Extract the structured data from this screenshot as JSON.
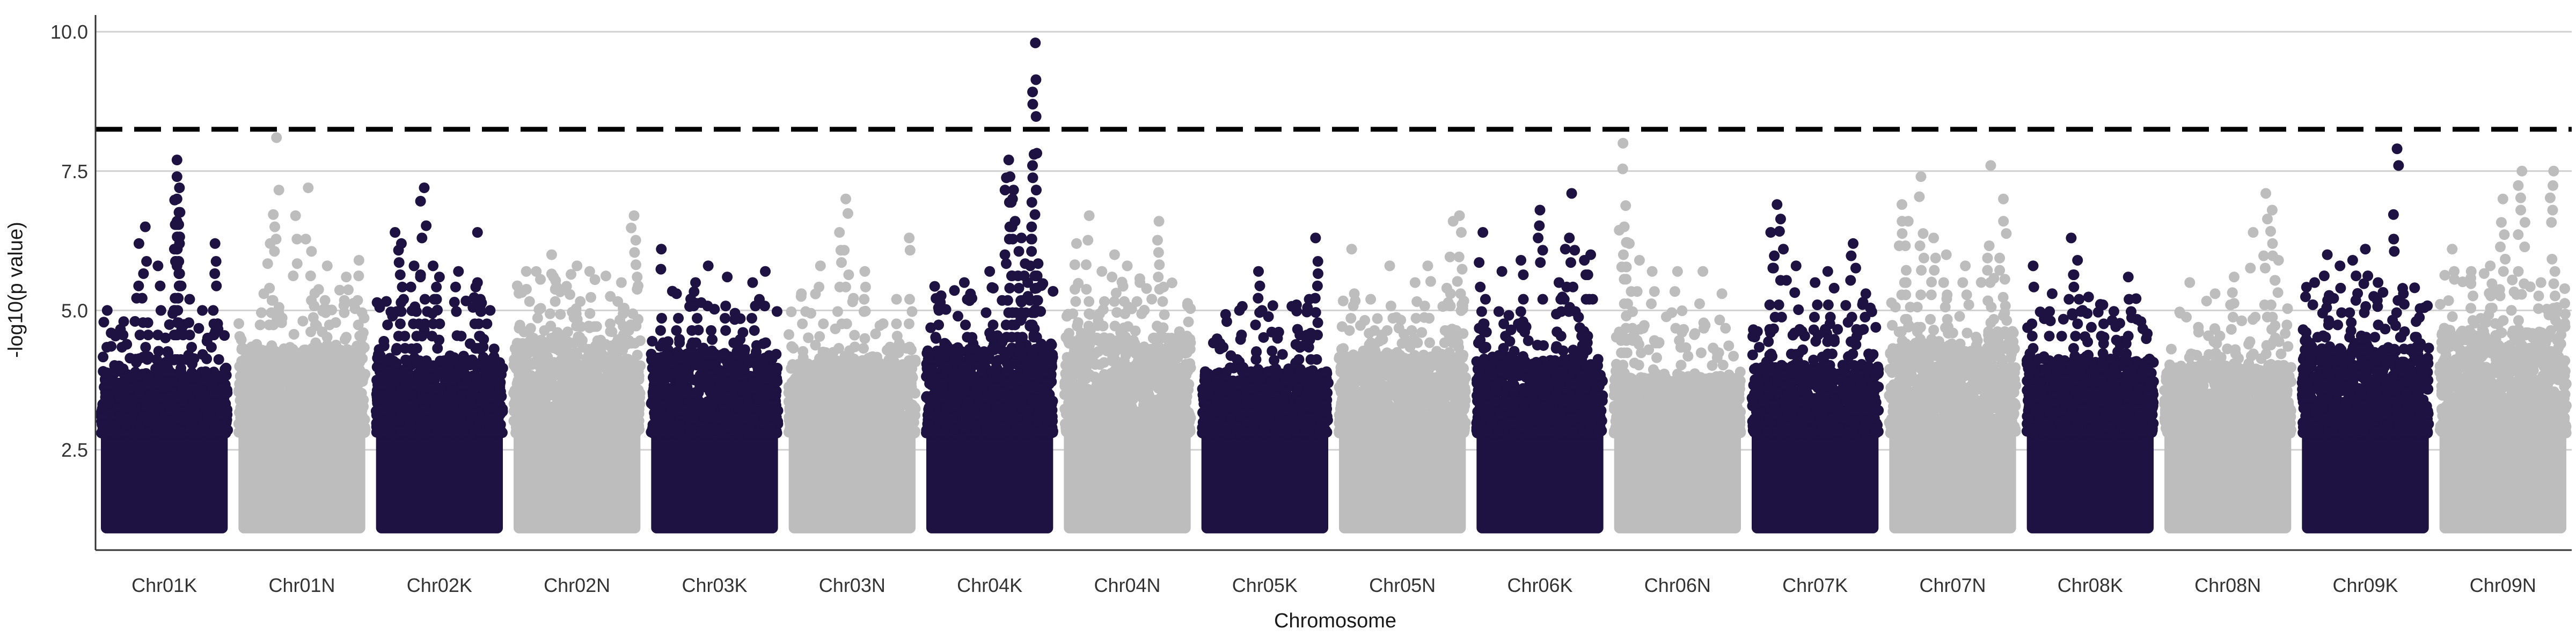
{
  "chart_data": {
    "type": "scatter",
    "subtype": "manhattan",
    "xlabel": "Chromosome",
    "ylabel": "-log10(p value)",
    "ylim": [
      0.7,
      10.3
    ],
    "yticks": [
      2.5,
      5.0,
      7.5,
      10.0
    ],
    "ytick_labels": [
      "2.5",
      "5.0",
      "7.5",
      "10.0"
    ],
    "grid": "horizontal major lines",
    "legend": "none",
    "significance_threshold": 8.25,
    "threshold_style": "dashed black line",
    "colors": {
      "K": "#1d1242",
      "N": "#bdbdbd",
      "threshold": "#000000",
      "grid": "#d0d0d0"
    },
    "categories": [
      "Chr01K",
      "Chr01N",
      "Chr02K",
      "Chr02N",
      "Chr03K",
      "Chr03N",
      "Chr04K",
      "Chr04N",
      "Chr05K",
      "Chr05N",
      "Chr06K",
      "Chr06N",
      "Chr07K",
      "Chr07N",
      "Chr08K",
      "Chr08N",
      "Chr09K",
      "Chr09N"
    ],
    "chromosomes": [
      {
        "name": "Chr01K",
        "group": "K",
        "dense_top": 3.9,
        "peaks": [
          [
            0.05,
            5.0
          ],
          [
            0.18,
            4.8
          ],
          [
            0.3,
            6.2
          ],
          [
            0.35,
            6.5
          ],
          [
            0.45,
            5.8
          ],
          [
            0.6,
            7.7
          ],
          [
            0.6,
            7.4
          ],
          [
            0.6,
            7.0
          ],
          [
            0.6,
            6.6
          ],
          [
            0.62,
            6.2
          ],
          [
            0.6,
            5.8
          ],
          [
            0.7,
            5.2
          ],
          [
            0.9,
            6.2
          ],
          [
            0.8,
            5.0
          ]
        ]
      },
      {
        "name": "Chr01N",
        "group": "N",
        "dense_top": 4.3,
        "peaks": [
          [
            0.2,
            5.3
          ],
          [
            0.25,
            6.2
          ],
          [
            0.3,
            8.1
          ],
          [
            0.45,
            6.7
          ],
          [
            0.55,
            7.2
          ],
          [
            0.7,
            5.8
          ],
          [
            0.85,
            5.6
          ],
          [
            0.95,
            5.9
          ]
        ]
      },
      {
        "name": "Chr02K",
        "group": "K",
        "dense_top": 4.1,
        "peaks": [
          [
            0.15,
            6.4
          ],
          [
            0.2,
            6.2
          ],
          [
            0.3,
            5.8
          ],
          [
            0.35,
            5.6
          ],
          [
            0.38,
            7.2
          ],
          [
            0.45,
            5.8
          ],
          [
            0.5,
            5.6
          ],
          [
            0.65,
            5.7
          ],
          [
            0.8,
            5.5
          ],
          [
            0.8,
            6.4
          ],
          [
            0.9,
            5.0
          ]
        ]
      },
      {
        "name": "Chr02N",
        "group": "N",
        "dense_top": 4.5,
        "peaks": [
          [
            0.1,
            5.7
          ],
          [
            0.3,
            6.0
          ],
          [
            0.5,
            5.8
          ],
          [
            0.6,
            5.7
          ],
          [
            0.85,
            5.5
          ],
          [
            0.95,
            6.7
          ]
        ]
      },
      {
        "name": "Chr03K",
        "group": "K",
        "dense_top": 4.2,
        "peaks": [
          [
            0.08,
            6.1
          ],
          [
            0.2,
            5.3
          ],
          [
            0.35,
            5.5
          ],
          [
            0.45,
            5.8
          ],
          [
            0.6,
            5.6
          ],
          [
            0.8,
            5.5
          ],
          [
            0.9,
            5.7
          ]
        ]
      },
      {
        "name": "Chr03N",
        "group": "N",
        "dense_top": 4.1,
        "peaks": [
          [
            0.1,
            5.3
          ],
          [
            0.25,
            5.8
          ],
          [
            0.4,
            6.4
          ],
          [
            0.45,
            7.0
          ],
          [
            0.6,
            5.7
          ],
          [
            0.85,
            5.2
          ],
          [
            0.95,
            6.3
          ]
        ]
      },
      {
        "name": "Chr04K",
        "group": "K",
        "dense_top": 4.3,
        "peaks": [
          [
            0.1,
            5.0
          ],
          [
            0.3,
            5.5
          ],
          [
            0.5,
            5.7
          ],
          [
            0.62,
            6.0
          ],
          [
            0.65,
            7.7
          ],
          [
            0.66,
            7.4
          ],
          [
            0.68,
            7.0
          ],
          [
            0.7,
            6.6
          ],
          [
            0.75,
            6.3
          ],
          [
            0.82,
            5.8
          ],
          [
            0.85,
            7.8
          ],
          [
            0.86,
            9.8
          ],
          [
            0.8,
            5.5
          ]
        ]
      },
      {
        "name": "Chr04N",
        "group": "N",
        "dense_top": 4.5,
        "peaks": [
          [
            0.1,
            6.2
          ],
          [
            0.2,
            6.7
          ],
          [
            0.3,
            5.7
          ],
          [
            0.4,
            6.0
          ],
          [
            0.5,
            5.8
          ],
          [
            0.6,
            5.5
          ],
          [
            0.75,
            6.6
          ]
        ]
      },
      {
        "name": "Chr05K",
        "group": "K",
        "dense_top": 3.9,
        "peaks": [
          [
            0.2,
            4.8
          ],
          [
            0.3,
            5.0
          ],
          [
            0.45,
            5.7
          ],
          [
            0.6,
            4.5
          ],
          [
            0.75,
            5.1
          ],
          [
            0.85,
            5.2
          ],
          [
            0.9,
            6.3
          ]
        ]
      },
      {
        "name": "Chr05N",
        "group": "N",
        "dense_top": 4.2,
        "peaks": [
          [
            0.1,
            6.1
          ],
          [
            0.25,
            5.2
          ],
          [
            0.4,
            5.8
          ],
          [
            0.6,
            5.5
          ],
          [
            0.7,
            5.8
          ],
          [
            0.85,
            5.4
          ],
          [
            0.9,
            6.6
          ],
          [
            0.95,
            6.7
          ]
        ]
      },
      {
        "name": "Chr06K",
        "group": "K",
        "dense_top": 4.1,
        "peaks": [
          [
            0.05,
            6.4
          ],
          [
            0.2,
            5.7
          ],
          [
            0.35,
            5.9
          ],
          [
            0.5,
            6.8
          ],
          [
            0.65,
            5.5
          ],
          [
            0.7,
            6.1
          ],
          [
            0.75,
            7.1
          ],
          [
            0.85,
            5.9
          ],
          [
            0.9,
            6.0
          ]
        ]
      },
      {
        "name": "Chr06N",
        "group": "N",
        "dense_top": 3.8,
        "peaks": [
          [
            0.07,
            8.0
          ],
          [
            0.08,
            6.5
          ],
          [
            0.12,
            6.2
          ],
          [
            0.2,
            5.9
          ],
          [
            0.3,
            5.7
          ],
          [
            0.5,
            5.7
          ],
          [
            0.7,
            5.7
          ],
          [
            0.85,
            5.3
          ]
        ]
      },
      {
        "name": "Chr07K",
        "group": "K",
        "dense_top": 4.0,
        "peaks": [
          [
            0.15,
            6.4
          ],
          [
            0.2,
            6.9
          ],
          [
            0.25,
            6.1
          ],
          [
            0.35,
            5.8
          ],
          [
            0.5,
            5.5
          ],
          [
            0.6,
            5.7
          ],
          [
            0.65,
            5.4
          ],
          [
            0.8,
            6.2
          ],
          [
            0.9,
            5.3
          ]
        ]
      },
      {
        "name": "Chr07N",
        "group": "N",
        "dense_top": 4.4,
        "peaks": [
          [
            0.1,
            6.9
          ],
          [
            0.15,
            6.6
          ],
          [
            0.25,
            7.4
          ],
          [
            0.35,
            6.3
          ],
          [
            0.45,
            6.0
          ],
          [
            0.6,
            5.8
          ],
          [
            0.8,
            7.6
          ],
          [
            0.9,
            7.0
          ]
        ]
      },
      {
        "name": "Chr08K",
        "group": "K",
        "dense_top": 4.1,
        "peaks": [
          [
            0.05,
            5.8
          ],
          [
            0.2,
            5.3
          ],
          [
            0.35,
            6.3
          ],
          [
            0.4,
            5.9
          ],
          [
            0.6,
            5.1
          ],
          [
            0.8,
            5.6
          ],
          [
            0.9,
            4.8
          ]
        ]
      },
      {
        "name": "Chr08N",
        "group": "N",
        "dense_top": 4.0,
        "peaks": [
          [
            0.2,
            5.5
          ],
          [
            0.4,
            5.3
          ],
          [
            0.55,
            5.6
          ],
          [
            0.7,
            6.4
          ],
          [
            0.8,
            7.1
          ],
          [
            0.85,
            6.8
          ],
          [
            0.9,
            5.9
          ]
        ]
      },
      {
        "name": "Chr09K",
        "group": "K",
        "dense_top": 4.3,
        "peaks": [
          [
            0.1,
            5.5
          ],
          [
            0.2,
            6.0
          ],
          [
            0.3,
            5.8
          ],
          [
            0.4,
            5.9
          ],
          [
            0.5,
            6.1
          ],
          [
            0.6,
            5.5
          ],
          [
            0.75,
            7.9
          ],
          [
            0.8,
            5.3
          ],
          [
            0.9,
            4.8
          ]
        ]
      },
      {
        "name": "Chr09N",
        "group": "N",
        "dense_top": 4.6,
        "peaks": [
          [
            0.1,
            6.1
          ],
          [
            0.25,
            5.7
          ],
          [
            0.4,
            5.8
          ],
          [
            0.5,
            7.0
          ],
          [
            0.65,
            7.5
          ],
          [
            0.8,
            5.5
          ],
          [
            0.9,
            7.5
          ]
        ]
      }
    ]
  }
}
